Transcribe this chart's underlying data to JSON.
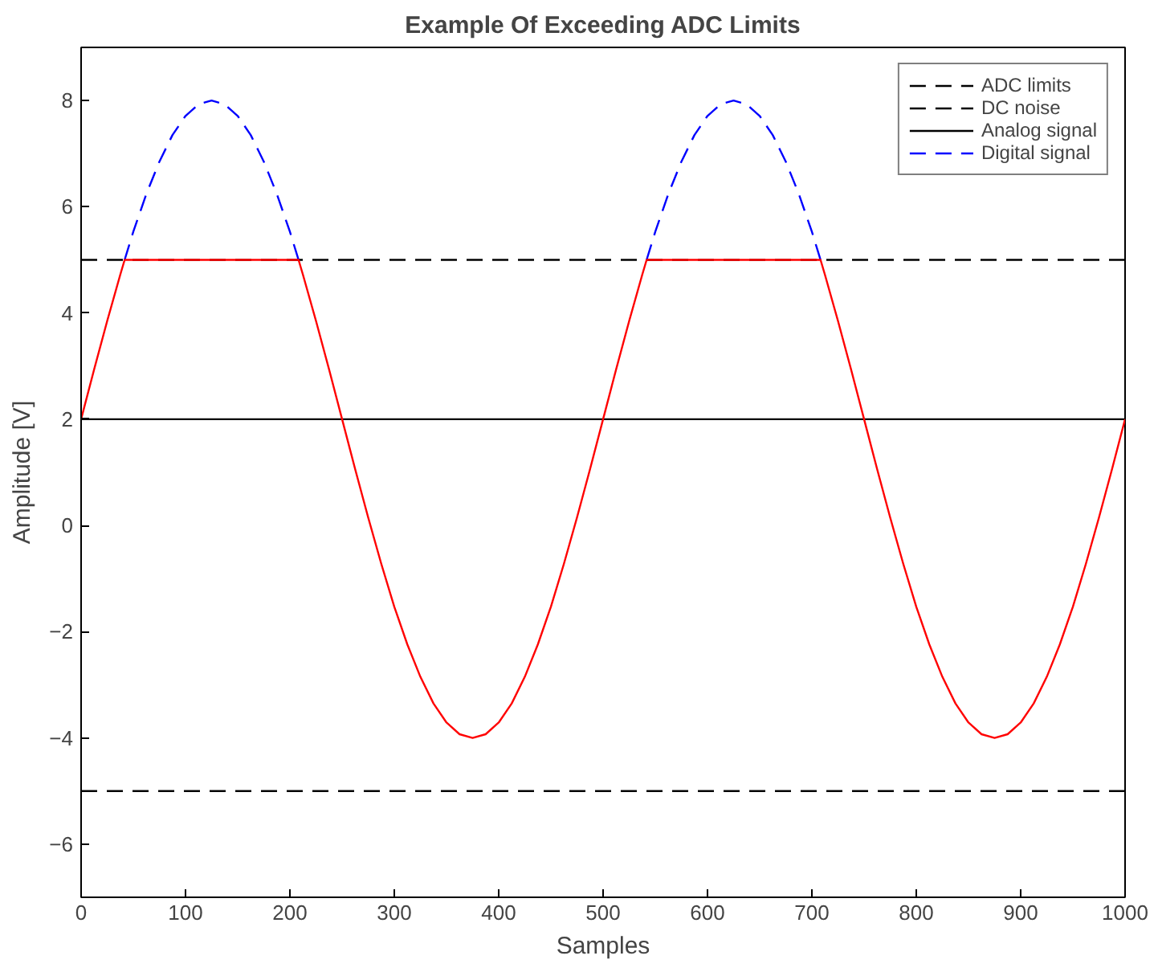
{
  "chart_data": {
    "type": "line",
    "title": "Example Of Exceeding ADC Limits",
    "xlabel": "Samples",
    "ylabel": "Amplitude [V]",
    "xlim": [
      0,
      1000
    ],
    "xticks": [
      0,
      100,
      200,
      300,
      400,
      500,
      600,
      700,
      800,
      900,
      1000
    ],
    "ylim": [
      -7,
      9
    ],
    "yticks": [
      -6,
      -4,
      -2,
      0,
      2,
      4,
      6,
      8
    ],
    "grid": false,
    "legend": "top right",
    "marker": "none",
    "series": [
      {
        "name": "ADC limits",
        "color": "#000000",
        "line_style": "dashed",
        "x": [
          0,
          1000
        ],
        "values": [
          5,
          5
        ]
      },
      {
        "name": "DC noise",
        "color": "#000000",
        "line_style": "dashed",
        "x": [
          0,
          1000
        ],
        "values": [
          -5,
          -5
        ]
      },
      {
        "name": "Analog signal",
        "color": "#000000",
        "line_style": "solid",
        "x": [
          0,
          1000
        ],
        "values": [
          2,
          2
        ]
      },
      {
        "name": "Digital signal",
        "color": "#0000ff",
        "line_style": "dashed",
        "x": [
          41.7,
          50,
          62.5,
          75,
          87.5,
          100,
          112.5,
          125,
          137.5,
          150,
          162.5,
          175,
          187.5,
          200,
          208.3,
          375,
          541.7,
          550,
          562.5,
          575,
          587.5,
          600,
          612.5,
          625,
          637.5,
          650,
          662.5,
          675,
          687.5,
          700,
          708.3
        ],
        "values": [
          5,
          5.53,
          6.24,
          6.85,
          7.35,
          7.71,
          7.93,
          8,
          7.93,
          7.71,
          7.35,
          6.85,
          6.24,
          5.53,
          5,
          null,
          5,
          5.53,
          6.24,
          6.85,
          7.35,
          7.71,
          7.93,
          8,
          7.93,
          7.71,
          7.35,
          6.85,
          6.24,
          5.53,
          5
        ]
      },
      {
        "color": "#ff0000",
        "line_style": "solid",
        "x": [
          0,
          12.5,
          25,
          37.5,
          41.7,
          208.3,
          212.5,
          225,
          237.5,
          250,
          262.5,
          275,
          287.5,
          300,
          312.5,
          325,
          337.5,
          350,
          362.5,
          375,
          387.5,
          400,
          412.5,
          425,
          437.5,
          450,
          462.5,
          475,
          487.5,
          500,
          512.5,
          525,
          537.5,
          541.7,
          708.3,
          712.5,
          725,
          737.5,
          750,
          762.5,
          775,
          787.5,
          800,
          812.5,
          825,
          837.5,
          850,
          862.5,
          875,
          887.5,
          900,
          912.5,
          925,
          937.5,
          950,
          962.5,
          975,
          987.5,
          1000
        ],
        "values": [
          2,
          2.94,
          3.85,
          4.72,
          5,
          5,
          4.72,
          3.85,
          2.94,
          2,
          1.06,
          0.15,
          -0.72,
          -1.53,
          -2.24,
          -2.85,
          -3.35,
          -3.71,
          -3.93,
          -4,
          -3.93,
          -3.71,
          -3.35,
          -2.85,
          -2.24,
          -1.53,
          -0.72,
          0.15,
          1.06,
          2,
          2.94,
          3.85,
          4.72,
          5,
          5,
          4.72,
          3.85,
          2.94,
          2,
          1.06,
          0.15,
          -0.72,
          -1.53,
          -2.24,
          -2.85,
          -3.35,
          -3.71,
          -3.93,
          -4,
          -3.93,
          -3.71,
          -3.35,
          -2.85,
          -2.24,
          -1.53,
          -0.72,
          0.15,
          1.06,
          2
        ]
      }
    ]
  }
}
